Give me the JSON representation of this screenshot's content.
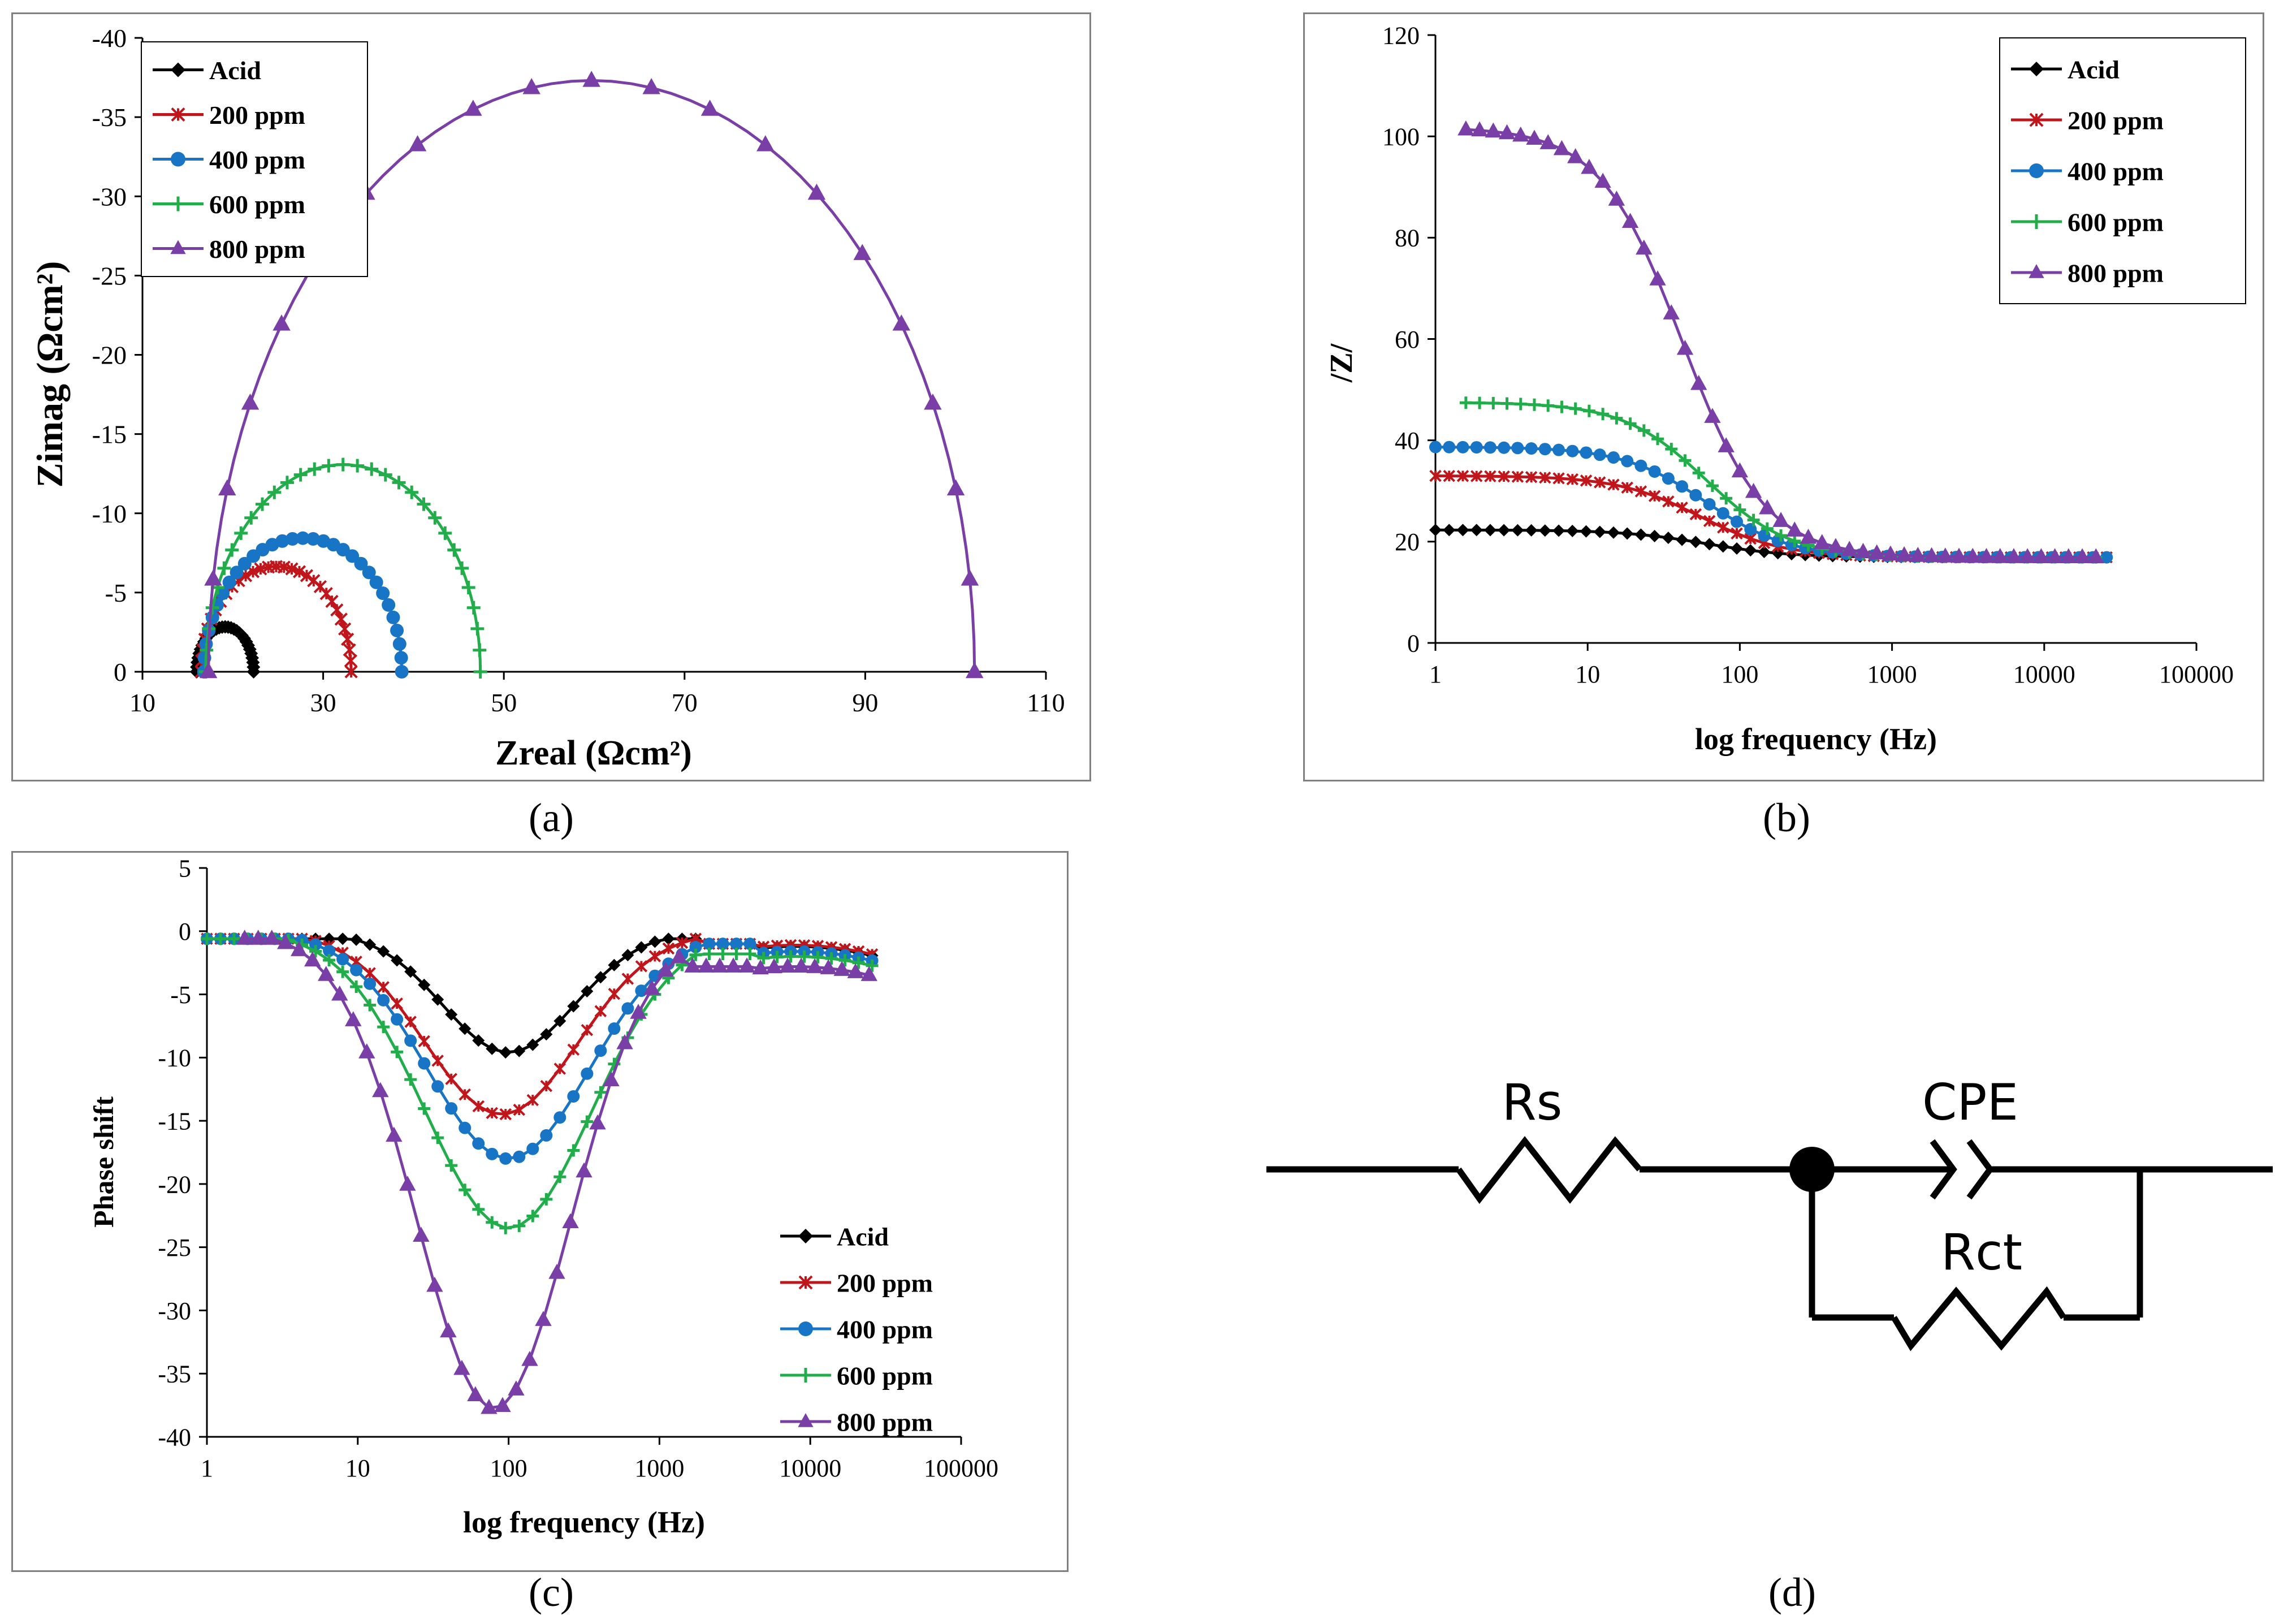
{
  "colors": {
    "acid": "#000000",
    "p200": "#c0161b",
    "p400": "#1874c4",
    "p600": "#22ad4b",
    "p800": "#7a3fa6"
  },
  "captions": {
    "a": "(a)",
    "b": "(b)",
    "c": "(c)",
    "d": "(d)"
  },
  "circuit": {
    "rs": "Rs",
    "cpe": "CPE",
    "rct": "Rct"
  },
  "chart_data": [
    {
      "panel": "a",
      "type": "scatter",
      "xlabel": "Zreal (Ωcm²)",
      "ylabel": "Zimag (Ωcm²)",
      "xlim": [
        10,
        110
      ],
      "ylim": [
        0,
        -40
      ],
      "xticks": [
        "10",
        "30",
        "50",
        "70",
        "90",
        "110"
      ],
      "yticks": [
        "0",
        "-5",
        "-10",
        "-15",
        "-20",
        "-25",
        "-30",
        "-35",
        "-40"
      ],
      "legend": "top-left",
      "series": [
        {
          "name": "Acid",
          "key": "acid",
          "marker": "diamond",
          "semi": {
            "rs": 16.0,
            "rct": 6.3,
            "depress": 0.9
          }
        },
        {
          "name": "200 ppm",
          "key": "p200",
          "marker": "x",
          "semi": {
            "rs": 16.5,
            "rct": 16.6,
            "depress": 0.8
          }
        },
        {
          "name": "400 ppm",
          "key": "p400",
          "marker": "circle",
          "semi": {
            "rs": 16.8,
            "rct": 21.9,
            "depress": 0.77
          }
        },
        {
          "name": "600 ppm",
          "key": "p600",
          "marker": "plus",
          "semi": {
            "rs": 17.0,
            "rct": 30.4,
            "depress": 0.86
          }
        },
        {
          "name": "800 ppm",
          "key": "p800",
          "marker": "triangle",
          "semi": {
            "rs": 17.3,
            "rct": 84.8,
            "depress": 0.88
          }
        }
      ]
    },
    {
      "panel": "b",
      "type": "line",
      "xlabel": "log frequency (Hz)",
      "ylabel": "/Z/",
      "xscale": "log",
      "xlim": [
        1,
        100000
      ],
      "ylim": [
        0,
        120
      ],
      "xticks": [
        "1",
        "10",
        "100",
        "1000",
        "10000",
        "100000"
      ],
      "yticks": [
        "0",
        "20",
        "40",
        "60",
        "80",
        "100",
        "120"
      ],
      "legend": "top-right",
      "series": [
        {
          "name": "Acid",
          "key": "acid",
          "marker": "diamond",
          "zmax": 22.3,
          "rs": 16.9,
          "fc": 60
        },
        {
          "name": "200 ppm",
          "key": "p200",
          "marker": "x",
          "zmax": 33.0,
          "rs": 16.9,
          "fc": 55
        },
        {
          "name": "400 ppm",
          "key": "p400",
          "marker": "circle",
          "zmax": 38.7,
          "rs": 16.9,
          "fc": 60
        },
        {
          "name": "600 ppm",
          "key": "p600",
          "marker": "plus",
          "zmax": 47.5,
          "rs": 16.9,
          "fc": 60
        },
        {
          "name": "800 ppm",
          "key": "p800",
          "marker": "triangle",
          "zmax": 101.8,
          "rs": 16.9,
          "fc": 42
        }
      ]
    },
    {
      "panel": "c",
      "type": "line",
      "xlabel": "log frequency (Hz)",
      "ylabel": "Phase shift",
      "xscale": "log",
      "xlim": [
        1,
        100000
      ],
      "ylim": [
        -40,
        5
      ],
      "xticks": [
        "1",
        "10",
        "100",
        "1000",
        "10000",
        "100000"
      ],
      "yticks": [
        "5",
        "0",
        "-5",
        "-10",
        "-15",
        "-20",
        "-25",
        "-30",
        "-35",
        "-40"
      ],
      "legend": "bottom-right",
      "series": [
        {
          "name": "Acid",
          "key": "acid",
          "marker": "diamond",
          "min": -9.6,
          "fmin": 100,
          "w": 0.62
        },
        {
          "name": "200 ppm",
          "key": "p200",
          "marker": "x",
          "min": -14.5,
          "fmin": 90,
          "w": 0.72
        },
        {
          "name": "400 ppm",
          "key": "p400",
          "marker": "circle",
          "min": -18.0,
          "fmin": 100,
          "w": 0.76
        },
        {
          "name": "600 ppm",
          "key": "p600",
          "marker": "plus",
          "min": -23.5,
          "fmin": 100,
          "w": 0.78
        },
        {
          "name": "800 ppm",
          "key": "p800",
          "marker": "triangle",
          "min": -37.8,
          "fmin": 80,
          "w": 0.72
        }
      ]
    }
  ]
}
